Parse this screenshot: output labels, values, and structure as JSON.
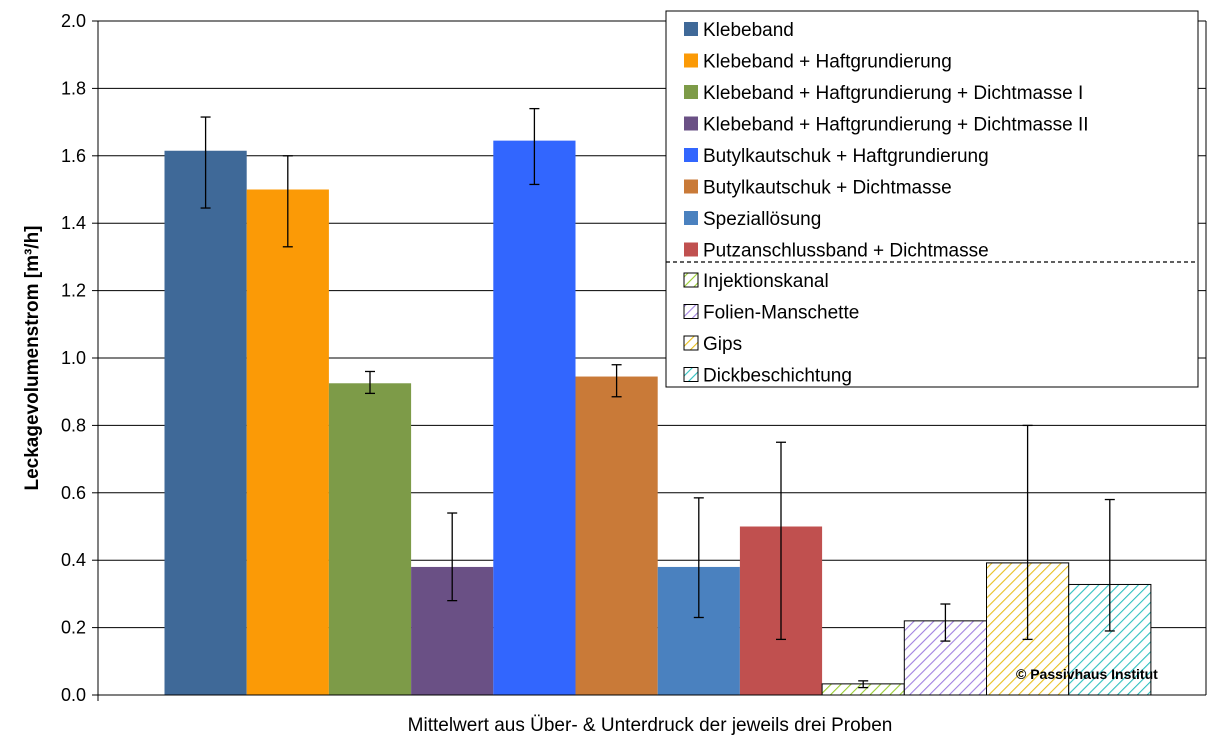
{
  "chart_data": {
    "type": "bar",
    "title": "",
    "ylabel": "Leckagevolumenstrom [m³/h]",
    "xlabel": "Mittelwert aus Über- & Unterdruck der jeweils drei Proben",
    "ylim": [
      0,
      2.0
    ],
    "yticks": [
      "0.0",
      "0.2",
      "0.4",
      "0.6",
      "0.8",
      "1.0",
      "1.2",
      "1.4",
      "1.6",
      "1.8",
      "2.0"
    ],
    "grid": true,
    "legend_position": "top-right",
    "series": [
      {
        "name": "Klebeband",
        "value": 1.615,
        "err_low": 1.445,
        "err_high": 1.715,
        "color": "#3f6998",
        "pattern": "solid"
      },
      {
        "name": "Klebeband + Haftgrundierung",
        "value": 1.5,
        "err_low": 1.33,
        "err_high": 1.6,
        "color": "#fb9a06",
        "pattern": "solid"
      },
      {
        "name": "Klebeband + Haftgrundierung + Dichtmasse I",
        "value": 0.925,
        "err_low": 0.895,
        "err_high": 0.96,
        "color": "#7d9b48",
        "pattern": "solid"
      },
      {
        "name": "Klebeband + Haftgrundierung + Dichtmasse II",
        "value": 0.38,
        "err_low": 0.28,
        "err_high": 0.54,
        "color": "#6a5085",
        "pattern": "solid"
      },
      {
        "name": "Butylkautschuk + Haftgrundierung",
        "value": 1.645,
        "err_low": 1.515,
        "err_high": 1.74,
        "color": "#3266fe",
        "pattern": "solid"
      },
      {
        "name": "Butylkautschuk + Dichtmasse",
        "value": 0.945,
        "err_low": 0.885,
        "err_high": 0.98,
        "color": "#c97a38",
        "pattern": "solid"
      },
      {
        "name": "Speziallösung",
        "value": 0.38,
        "err_low": 0.23,
        "err_high": 0.585,
        "color": "#4a81bf",
        "pattern": "solid"
      },
      {
        "name": "Putzanschlussband + Dichtmasse",
        "value": 0.5,
        "err_low": 0.165,
        "err_high": 0.75,
        "color": "#c0504f",
        "pattern": "solid"
      },
      {
        "name": "Injektionskanal",
        "value": 0.033,
        "err_low": 0.022,
        "err_high": 0.042,
        "color": "#9acd32",
        "pattern": "hatched"
      },
      {
        "name": "Folien-Manschette",
        "value": 0.22,
        "err_low": 0.16,
        "err_high": 0.27,
        "color": "#a080e0",
        "pattern": "hatched"
      },
      {
        "name": "Gips",
        "value": 0.392,
        "err_low": 0.165,
        "err_high": 0.8,
        "color": "#e8c020",
        "pattern": "hatched"
      },
      {
        "name": "Dickbeschichtung",
        "value": 0.328,
        "err_low": 0.19,
        "err_high": 0.58,
        "color": "#30c0c0",
        "pattern": "hatched"
      }
    ],
    "annotation": "© Passivhaus Institut"
  }
}
